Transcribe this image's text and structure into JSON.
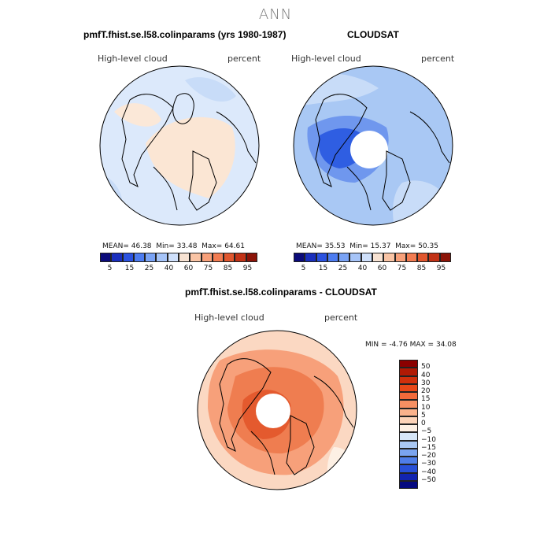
{
  "page_title": "ANN",
  "chart_data": [
    {
      "type": "heatmap",
      "projection": "north-polar-stereographic",
      "title": "pmfT.fhist.se.l58.colinparams (yrs 1980-1987)",
      "variable": "High-level cloud",
      "units": "percent",
      "stats": {
        "mean_label": "MEAN=",
        "mean": "46.38",
        "min_label": "Min=",
        "min": "33.48",
        "max_label": "Max=",
        "max": "64.61"
      },
      "colorbar_labels": [
        "5",
        "15",
        "25",
        "40",
        "60",
        "75",
        "85",
        "95"
      ],
      "colorbar_colors": [
        "#0b0b7a",
        "#1a2fbd",
        "#2b52e0",
        "#4d7cf0",
        "#7aa3f5",
        "#a6c4f8",
        "#cfe0fb",
        "#f7e2d2",
        "#f9c4a5",
        "#f7a07a",
        "#f27c52",
        "#e0562e",
        "#c23216",
        "#8c1408"
      ]
    },
    {
      "type": "heatmap",
      "projection": "north-polar-stereographic",
      "title": "CLOUDSAT",
      "variable": "High-level cloud",
      "units": "percent",
      "stats": {
        "mean_label": "MEAN=",
        "mean": "35.53",
        "min_label": "Min=",
        "min": "15.37",
        "max_label": "Max=",
        "max": "50.35"
      },
      "colorbar_labels": [
        "5",
        "15",
        "25",
        "40",
        "60",
        "75",
        "85",
        "95"
      ],
      "colorbar_colors": [
        "#0b0b7a",
        "#1a2fbd",
        "#2b52e0",
        "#4d7cf0",
        "#7aa3f5",
        "#a6c4f8",
        "#cfe0fb",
        "#f7e2d2",
        "#f9c4a5",
        "#f7a07a",
        "#f27c52",
        "#e0562e",
        "#c23216",
        "#8c1408"
      ]
    },
    {
      "type": "heatmap",
      "projection": "north-polar-stereographic",
      "title": "pmfT.fhist.se.l58.colinparams - CLOUDSAT",
      "variable": "High-level cloud",
      "units": "percent",
      "stats": {
        "min_label": "MIN =",
        "min": "-4.76",
        "max_label": "MAX =",
        "max": "34.08"
      },
      "colorbar_labels": [
        "50",
        "40",
        "30",
        "20",
        "15",
        "10",
        "5",
        "0",
        "−5",
        "−10",
        "−15",
        "−20",
        "−30",
        "−40",
        "−50"
      ],
      "colorbar_colors": [
        "#8b0000",
        "#b01a05",
        "#d0300c",
        "#e84818",
        "#f26a3a",
        "#f78f62",
        "#fab28c",
        "#fcd3b8",
        "#fdf0e4",
        "#d6e6f8",
        "#a9c8f4",
        "#7aa4ef",
        "#4f7ee8",
        "#2850d8",
        "#1224b0",
        "#060a80"
      ]
    }
  ]
}
